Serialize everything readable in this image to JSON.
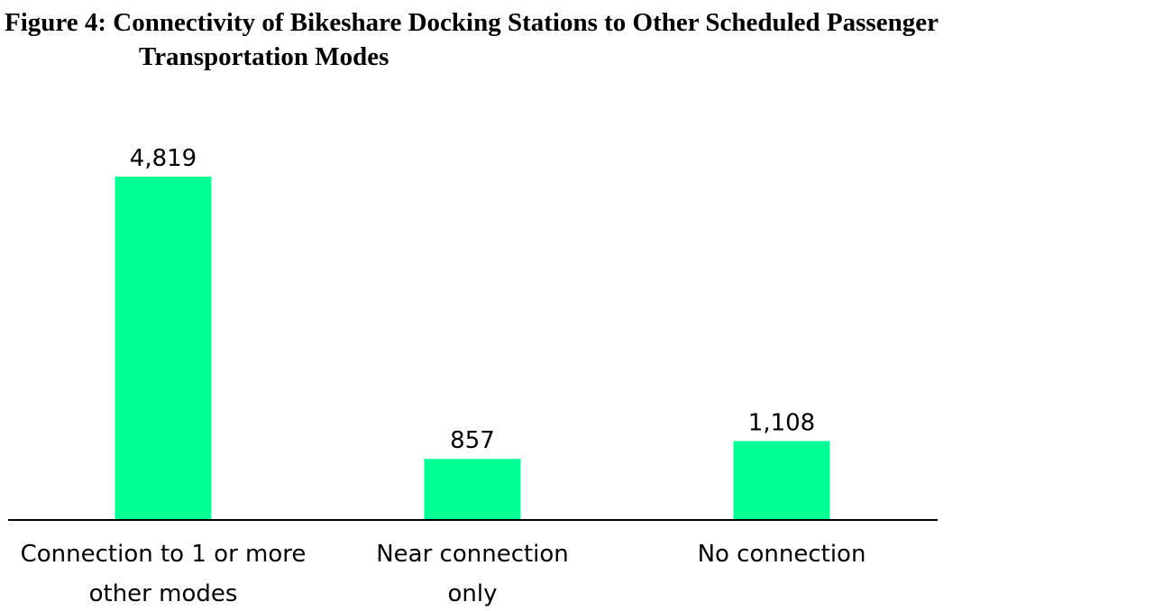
{
  "figure": {
    "title_line1": "Figure 4: Connectivity of Bikeshare Docking Stations to Other Scheduled Passenger",
    "title_line2": "Transportation Modes"
  },
  "chart_data": {
    "type": "bar",
    "title": "Figure 4: Connectivity of Bikeshare Docking Stations to Other Scheduled Passenger Transportation Modes",
    "categories": [
      [
        "Connection to 1 or more",
        "other modes"
      ],
      [
        "Near connection",
        "only"
      ],
      [
        "No connection"
      ]
    ],
    "values": [
      4819,
      857,
      1108
    ],
    "data_labels": [
      "4,819",
      "857",
      "1,108"
    ],
    "xlabel": "",
    "ylabel": "",
    "ylim": [
      0,
      5000
    ],
    "grid": false,
    "legend": "none",
    "bar_color": "#00FF95"
  }
}
